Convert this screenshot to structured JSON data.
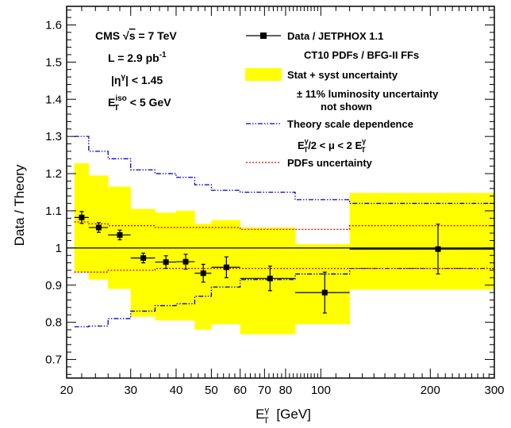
{
  "chart_data": {
    "type": "scatter",
    "ylabel": "Data / Theory",
    "xlabel_main": "E",
    "xlabel_sup": "γ",
    "xlabel_sub": "T",
    "xlabel_unit": "[GeV]",
    "x_scale": "log",
    "xlim": [
      20,
      300
    ],
    "ylim": [
      0.65,
      1.65
    ],
    "x_ticks_labeled": [
      20,
      30,
      40,
      50,
      60,
      70,
      80,
      100,
      200,
      300
    ],
    "x_tick_labels": [
      "20",
      "30",
      "40",
      "50",
      "60",
      "70",
      "80",
      "100",
      "200",
      "300"
    ],
    "y_ticks_labeled": [
      0.7,
      0.8,
      0.9,
      1.0,
      1.1,
      1.2,
      1.3,
      1.4,
      1.5,
      1.6
    ],
    "y_tick_labels": [
      "0.7",
      "0.8",
      "0.9",
      "1",
      "1.1",
      "1.2",
      "1.3",
      "1.4",
      "1.5",
      "1.6"
    ],
    "reference_line": 1.0,
    "annotations": {
      "cms_pre": "CMS ",
      "cms_sqrt": "√",
      "cms_s": "s",
      "cms_post": " = 7 TeV",
      "lumi_pre": "L = 2.9 pb",
      "lumi_sup": "-1",
      "eta_pre": "|η",
      "eta_sup": "γ",
      "eta_post": "| < 1.45",
      "iso_main": "E",
      "iso_sup": "iso",
      "iso_sub": "T",
      "iso_post": " < 5 GeV"
    },
    "legend": {
      "data_label": "Data / JETPHOX 1.1",
      "data_sub": "CT10 PDFs / BFG-II FFs",
      "stat_label": "Stat + syst uncertainty",
      "lumi_note_1": "± 11% luminosity uncertainty",
      "lumi_note_2": "not shown",
      "scale_label": "Theory scale dependence",
      "scale_sub_a": "E",
      "scale_sub_sup1": "γ",
      "scale_sub_sub1": "T",
      "scale_sub_b": "/2 < μ < 2 E",
      "scale_sub_sup2": "γ",
      "scale_sub_sub2": "T",
      "pdf_label": "PDFs uncertainty"
    },
    "colors": {
      "band": "#ffff00",
      "scale_line": "#0000cc",
      "pdf_line": "#dd0000",
      "marker": "#000000"
    },
    "series": [
      {
        "name": "Data / JETPHOX 1.1",
        "points": [
          {
            "x": 22,
            "y": 1.082,
            "xlo": 21,
            "xhi": 23,
            "ylo": 1.066,
            "yhi": 1.098
          },
          {
            "x": 24.5,
            "y": 1.055,
            "xlo": 23,
            "xhi": 26,
            "ylo": 1.042,
            "yhi": 1.068
          },
          {
            "x": 28,
            "y": 1.035,
            "xlo": 26,
            "xhi": 30,
            "ylo": 1.022,
            "yhi": 1.048
          },
          {
            "x": 32.5,
            "y": 0.973,
            "xlo": 30,
            "xhi": 35,
            "ylo": 0.96,
            "yhi": 0.986
          },
          {
            "x": 37.5,
            "y": 0.962,
            "xlo": 35,
            "xhi": 40,
            "ylo": 0.945,
            "yhi": 0.979
          },
          {
            "x": 42.5,
            "y": 0.963,
            "xlo": 40,
            "xhi": 45,
            "ylo": 0.943,
            "yhi": 0.983
          },
          {
            "x": 47.5,
            "y": 0.932,
            "xlo": 45,
            "xhi": 50,
            "ylo": 0.908,
            "yhi": 0.956
          },
          {
            "x": 55,
            "y": 0.948,
            "xlo": 50,
            "xhi": 60,
            "ylo": 0.92,
            "yhi": 0.976
          },
          {
            "x": 72.5,
            "y": 0.918,
            "xlo": 60,
            "xhi": 85,
            "ylo": 0.885,
            "yhi": 0.951
          },
          {
            "x": 102.5,
            "y": 0.88,
            "xlo": 85,
            "xhi": 120,
            "ylo": 0.825,
            "yhi": 0.935
          },
          {
            "x": 210,
            "y": 0.997,
            "xlo": 120,
            "xhi": 300,
            "ylo": 0.93,
            "yhi": 1.064
          }
        ]
      }
    ],
    "bins": [
      {
        "lo": 21,
        "hi": 23,
        "band_lo": 0.935,
        "band_hi": 1.228,
        "pdf_lo": 0.935,
        "pdf_hi": 1.07,
        "scale_lo": 0.788,
        "scale_hi": 1.3
      },
      {
        "lo": 23,
        "hi": 26,
        "band_lo": 0.915,
        "band_hi": 1.195,
        "pdf_lo": 0.935,
        "pdf_hi": 1.065,
        "scale_lo": 0.79,
        "scale_hi": 1.26
      },
      {
        "lo": 26,
        "hi": 30,
        "band_lo": 0.89,
        "band_hi": 1.165,
        "pdf_lo": 0.94,
        "pdf_hi": 1.06,
        "scale_lo": 0.81,
        "scale_hi": 1.24
      },
      {
        "lo": 30,
        "hi": 35,
        "band_lo": 0.815,
        "band_hi": 1.105,
        "pdf_lo": 0.94,
        "pdf_hi": 1.06,
        "scale_lo": 0.83,
        "scale_hi": 1.21
      },
      {
        "lo": 35,
        "hi": 40,
        "band_lo": 0.805,
        "band_hi": 1.095,
        "pdf_lo": 0.945,
        "pdf_hi": 1.055,
        "scale_lo": 0.845,
        "scale_hi": 1.2
      },
      {
        "lo": 40,
        "hi": 45,
        "band_lo": 0.805,
        "band_hi": 1.1,
        "pdf_lo": 0.945,
        "pdf_hi": 1.055,
        "scale_lo": 0.85,
        "scale_hi": 1.19
      },
      {
        "lo": 45,
        "hi": 50,
        "band_lo": 0.78,
        "band_hi": 1.065,
        "pdf_lo": 0.945,
        "pdf_hi": 1.055,
        "scale_lo": 0.87,
        "scale_hi": 1.17
      },
      {
        "lo": 50,
        "hi": 60,
        "band_lo": 0.795,
        "band_hi": 1.075,
        "pdf_lo": 0.945,
        "pdf_hi": 1.055,
        "scale_lo": 0.895,
        "scale_hi": 1.155
      },
      {
        "lo": 60,
        "hi": 85,
        "band_lo": 0.768,
        "band_hi": 1.055,
        "pdf_lo": 0.945,
        "pdf_hi": 1.05,
        "scale_lo": 0.915,
        "scale_hi": 1.15
      },
      {
        "lo": 85,
        "hi": 120,
        "band_lo": 0.795,
        "band_hi": 1.01,
        "pdf_lo": 0.945,
        "pdf_hi": 1.05,
        "scale_lo": 0.93,
        "scale_hi": 1.13
      },
      {
        "lo": 120,
        "hi": 300,
        "band_lo": 0.888,
        "band_hi": 1.148,
        "pdf_lo": 0.945,
        "pdf_hi": 1.06,
        "scale_lo": 0.945,
        "scale_hi": 1.12
      }
    ]
  }
}
